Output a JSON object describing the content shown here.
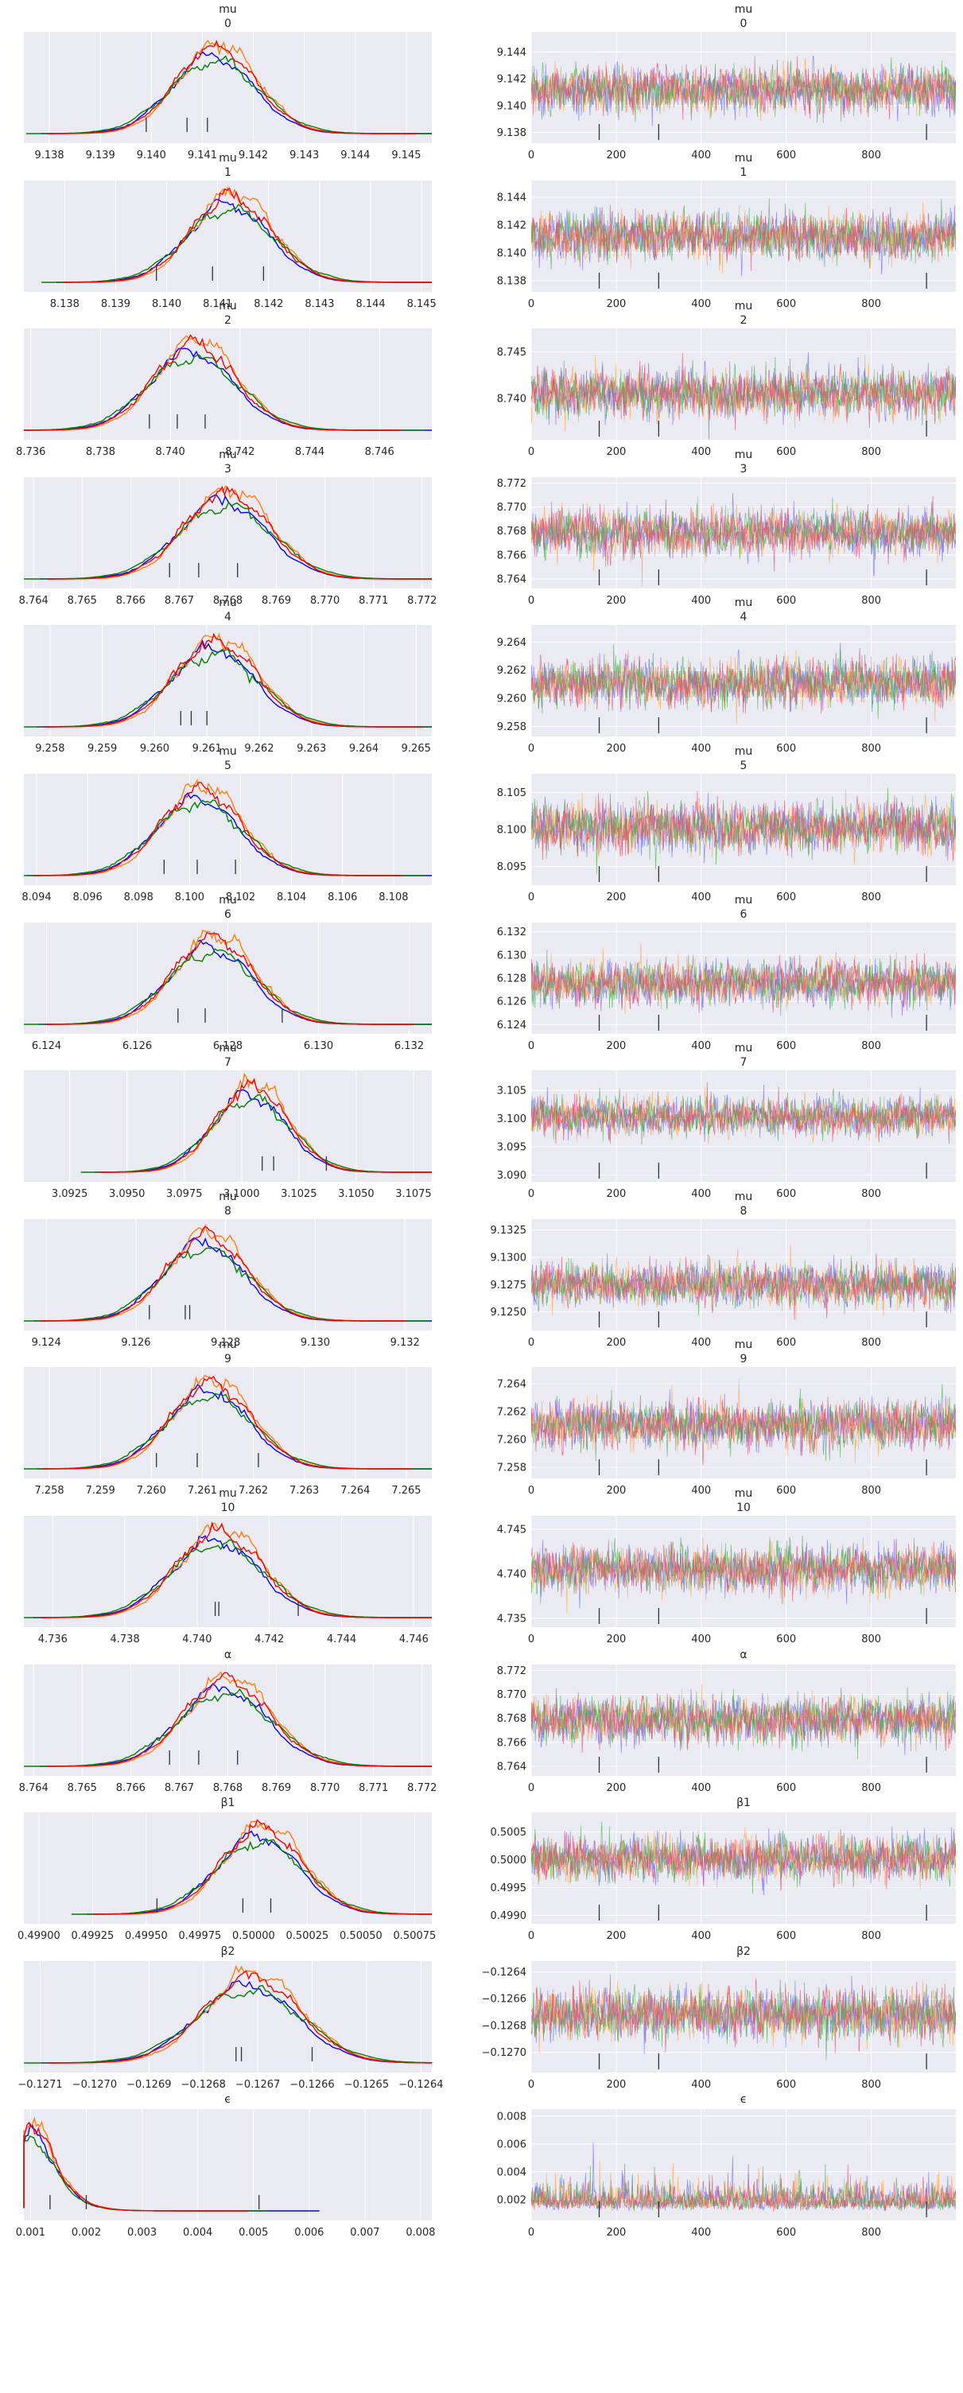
{
  "figure": {
    "type": "arviz_trace_plot",
    "chains": 4,
    "draws": 1000
  },
  "colors": {
    "background": "#eaeaf2",
    "grid": "#ffffff",
    "chain_colors": [
      "#0000ff",
      "#ff7f0e",
      "#008000",
      "#ff0000"
    ],
    "trace_colors": [
      "#6c6cff",
      "#ffa64d",
      "#4caf50",
      "#e0506e"
    ]
  },
  "chart_data": [
    {
      "type": "line",
      "panel": "density",
      "title": "mu",
      "subtitle": "0",
      "xlim": [
        9.1375,
        9.1455
      ],
      "xticks": [
        "9.138",
        "9.139",
        "9.140",
        "9.141",
        "9.142",
        "9.143",
        "9.144",
        "9.145"
      ],
      "xticks_num": [
        9.138,
        9.139,
        9.14,
        9.141,
        9.142,
        9.143,
        9.144,
        9.145
      ],
      "mean": 9.1412,
      "sd": 0.0008,
      "rug": [
        9.1399,
        9.1407,
        9.1411
      ],
      "grid": true
    },
    {
      "type": "line",
      "panel": "trace",
      "title": "mu",
      "subtitle": "0",
      "xlim": [
        0,
        999
      ],
      "ylim": [
        9.1372,
        9.1455
      ],
      "xticks": [
        "0",
        "200",
        "400",
        "600",
        "800"
      ],
      "yticks": [
        "9.138",
        "9.140",
        "9.142",
        "9.144"
      ],
      "yticks_num": [
        9.138,
        9.14,
        9.142,
        9.144
      ],
      "mean": 9.1412,
      "sd": 0.0008,
      "divergences": [
        160,
        300,
        930
      ],
      "grid": true
    },
    {
      "type": "line",
      "panel": "density",
      "title": "mu",
      "subtitle": "1",
      "xlim": [
        8.1372,
        8.1452
      ],
      "xticks": [
        "8.138",
        "8.139",
        "8.140",
        "8.141",
        "8.142",
        "8.143",
        "8.144",
        "8.145"
      ],
      "xticks_num": [
        8.138,
        8.139,
        8.14,
        8.141,
        8.142,
        8.143,
        8.144,
        8.145
      ],
      "mean": 8.1412,
      "sd": 0.0008,
      "rug": [
        8.1398,
        8.1409,
        8.1419
      ],
      "grid": true
    },
    {
      "type": "line",
      "panel": "trace",
      "title": "mu",
      "subtitle": "1",
      "xlim": [
        0,
        999
      ],
      "ylim": [
        8.1372,
        8.1452
      ],
      "xticks": [
        "0",
        "200",
        "400",
        "600",
        "800"
      ],
      "yticks": [
        "8.138",
        "8.140",
        "8.142",
        "8.144"
      ],
      "yticks_num": [
        8.138,
        8.14,
        8.142,
        8.144
      ],
      "mean": 8.1412,
      "sd": 0.0008,
      "divergences": [
        160,
        300,
        930
      ],
      "grid": true
    },
    {
      "type": "line",
      "panel": "density",
      "title": "mu",
      "subtitle": "2",
      "xlim": [
        8.7358,
        8.7475
      ],
      "xticks": [
        "8.736",
        "8.738",
        "8.740",
        "8.742",
        "8.744",
        "8.746"
      ],
      "xticks_num": [
        8.736,
        8.738,
        8.74,
        8.742,
        8.744,
        8.746
      ],
      "mean": 8.7406,
      "sd": 0.0012,
      "rug": [
        8.7394,
        8.7402,
        8.741
      ],
      "grid": true
    },
    {
      "type": "line",
      "panel": "trace",
      "title": "mu",
      "subtitle": "2",
      "xlim": [
        0,
        999
      ],
      "ylim": [
        8.7356,
        8.7475
      ],
      "xticks": [
        "0",
        "200",
        "400",
        "600",
        "800"
      ],
      "yticks": [
        "8.740",
        "8.745"
      ],
      "yticks_num": [
        8.74,
        8.745
      ],
      "mean": 8.7406,
      "sd": 0.0012,
      "divergences": [
        160,
        300,
        930
      ],
      "grid": true
    },
    {
      "type": "line",
      "panel": "density",
      "title": "mu",
      "subtitle": "3",
      "xlim": [
        8.7638,
        8.7722
      ],
      "xticks": [
        "8.764",
        "8.765",
        "8.766",
        "8.767",
        "8.768",
        "8.769",
        "8.770",
        "8.771",
        "8.772"
      ],
      "xticks_num": [
        8.764,
        8.765,
        8.766,
        8.767,
        8.768,
        8.769,
        8.77,
        8.771,
        8.772
      ],
      "mean": 8.7679,
      "sd": 0.0009,
      "rug": [
        8.7668,
        8.7674,
        8.7682
      ],
      "grid": true
    },
    {
      "type": "line",
      "panel": "trace",
      "title": "mu",
      "subtitle": "3",
      "xlim": [
        0,
        999
      ],
      "ylim": [
        8.7632,
        8.7725
      ],
      "xticks": [
        "0",
        "200",
        "400",
        "600",
        "800"
      ],
      "yticks": [
        "8.764",
        "8.766",
        "8.768",
        "8.770",
        "8.772"
      ],
      "yticks_num": [
        8.764,
        8.766,
        8.768,
        8.77,
        8.772
      ],
      "mean": 8.7679,
      "sd": 0.0009,
      "divergences": [
        160,
        300,
        930
      ],
      "grid": true
    },
    {
      "type": "line",
      "panel": "density",
      "title": "mu",
      "subtitle": "4",
      "xlim": [
        9.2575,
        9.2653
      ],
      "xticks": [
        "9.258",
        "9.259",
        "9.260",
        "9.261",
        "9.262",
        "9.263",
        "9.264",
        "9.265"
      ],
      "xticks_num": [
        9.258,
        9.259,
        9.26,
        9.261,
        9.262,
        9.263,
        9.264,
        9.265
      ],
      "mean": 9.2611,
      "sd": 0.0008,
      "rug": [
        9.2605,
        9.2607,
        9.261
      ],
      "grid": true
    },
    {
      "type": "line",
      "panel": "trace",
      "title": "mu",
      "subtitle": "4",
      "xlim": [
        0,
        999
      ],
      "ylim": [
        9.2573,
        9.2652
      ],
      "xticks": [
        "0",
        "200",
        "400",
        "600",
        "800"
      ],
      "yticks": [
        "9.258",
        "9.260",
        "9.262",
        "9.264"
      ],
      "yticks_num": [
        9.258,
        9.26,
        9.262,
        9.264
      ],
      "mean": 9.2611,
      "sd": 0.0008,
      "divergences": [
        160,
        300,
        930
      ],
      "grid": true
    },
    {
      "type": "line",
      "panel": "density",
      "title": "mu",
      "subtitle": "5",
      "xlim": [
        8.0935,
        8.1095
      ],
      "xticks": [
        "8.094",
        "8.096",
        "8.098",
        "8.100",
        "8.102",
        "8.104",
        "8.106",
        "8.108"
      ],
      "xticks_num": [
        8.094,
        8.096,
        8.098,
        8.1,
        8.102,
        8.104,
        8.106,
        8.108
      ],
      "mean": 8.1003,
      "sd": 0.0016,
      "rug": [
        8.099,
        8.1003,
        8.1018
      ],
      "grid": true
    },
    {
      "type": "line",
      "panel": "trace",
      "title": "mu",
      "subtitle": "5",
      "xlim": [
        0,
        999
      ],
      "ylim": [
        8.0925,
        8.1075
      ],
      "xticks": [
        "0",
        "200",
        "400",
        "600",
        "800"
      ],
      "yticks": [
        "8.095",
        "8.100",
        "8.105"
      ],
      "yticks_num": [
        8.095,
        8.1,
        8.105
      ],
      "mean": 8.1003,
      "sd": 0.0016,
      "divergences": [
        160,
        300,
        930
      ],
      "grid": true
    },
    {
      "type": "line",
      "panel": "density",
      "title": "mu",
      "subtitle": "6",
      "xlim": [
        6.1235,
        6.1325
      ],
      "xticks": [
        "6.124",
        "6.126",
        "6.128",
        "6.130",
        "6.132"
      ],
      "xticks_num": [
        6.124,
        6.126,
        6.128,
        6.13,
        6.132
      ],
      "mean": 6.1276,
      "sd": 0.0009,
      "rug": [
        6.1269,
        6.1275,
        6.1292
      ],
      "grid": true
    },
    {
      "type": "line",
      "panel": "trace",
      "title": "mu",
      "subtitle": "6",
      "xlim": [
        0,
        999
      ],
      "ylim": [
        6.1232,
        6.1328
      ],
      "xticks": [
        "0",
        "200",
        "400",
        "600",
        "800"
      ],
      "yticks": [
        "6.124",
        "6.126",
        "6.128",
        "6.130",
        "6.132"
      ],
      "yticks_num": [
        6.124,
        6.126,
        6.128,
        6.13,
        6.132
      ],
      "mean": 6.1276,
      "sd": 0.0009,
      "divergences": [
        160,
        300,
        930
      ],
      "grid": true
    },
    {
      "type": "line",
      "panel": "density",
      "title": "mu",
      "subtitle": "7",
      "xlim": [
        3.0905,
        3.1083
      ],
      "xticks": [
        "3.0925",
        "3.0950",
        "3.0975",
        "3.1000",
        "3.1025",
        "3.1050",
        "3.1075"
      ],
      "xticks_num": [
        3.0925,
        3.095,
        3.0975,
        3.1,
        3.1025,
        3.105,
        3.1075
      ],
      "mean": 3.1003,
      "sd": 0.0016,
      "rug": [
        3.1009,
        3.1014,
        3.1037
      ],
      "grid": true
    },
    {
      "type": "line",
      "panel": "trace",
      "title": "mu",
      "subtitle": "7",
      "xlim": [
        0,
        999
      ],
      "ylim": [
        3.0888,
        3.1085
      ],
      "xticks": [
        "0",
        "200",
        "400",
        "600",
        "800"
      ],
      "yticks": [
        "3.090",
        "3.095",
        "3.100",
        "3.105"
      ],
      "yticks_num": [
        3.09,
        3.095,
        3.1,
        3.105
      ],
      "mean": 3.1003,
      "sd": 0.0016,
      "divergences": [
        160,
        300,
        930
      ],
      "grid": true
    },
    {
      "type": "line",
      "panel": "density",
      "title": "mu",
      "subtitle": "8",
      "xlim": [
        9.1235,
        9.1326
      ],
      "xticks": [
        "9.124",
        "9.126",
        "9.128",
        "9.130",
        "9.132"
      ],
      "xticks_num": [
        9.124,
        9.126,
        9.128,
        9.13,
        9.132
      ],
      "mean": 9.1275,
      "sd": 0.0009,
      "rug": [
        9.1263,
        9.1271,
        9.1272
      ],
      "grid": true
    },
    {
      "type": "line",
      "panel": "trace",
      "title": "mu",
      "subtitle": "8",
      "xlim": [
        0,
        999
      ],
      "ylim": [
        9.1233,
        9.1335
      ],
      "xticks": [
        "0",
        "200",
        "400",
        "600",
        "800"
      ],
      "yticks": [
        "9.1250",
        "9.1275",
        "9.1300",
        "9.1325"
      ],
      "yticks_num": [
        9.125,
        9.1275,
        9.13,
        9.1325
      ],
      "mean": 9.1275,
      "sd": 0.0009,
      "divergences": [
        160,
        300,
        930
      ],
      "grid": true
    },
    {
      "type": "line",
      "panel": "density",
      "title": "mu",
      "subtitle": "9",
      "xlim": [
        7.2575,
        7.2655
      ],
      "xticks": [
        "7.258",
        "7.259",
        "7.260",
        "7.261",
        "7.262",
        "7.263",
        "7.264",
        "7.265"
      ],
      "xticks_num": [
        7.258,
        7.259,
        7.26,
        7.261,
        7.262,
        7.263,
        7.264,
        7.265
      ],
      "mean": 7.2611,
      "sd": 0.0008,
      "rug": [
        7.2601,
        7.2609,
        7.2621
      ],
      "grid": true
    },
    {
      "type": "line",
      "panel": "trace",
      "title": "mu",
      "subtitle": "9",
      "xlim": [
        0,
        999
      ],
      "ylim": [
        7.2572,
        7.2652
      ],
      "xticks": [
        "0",
        "200",
        "400",
        "600",
        "800"
      ],
      "yticks": [
        "7.258",
        "7.260",
        "7.262",
        "7.264"
      ],
      "yticks_num": [
        7.258,
        7.26,
        7.262,
        7.264
      ],
      "mean": 7.2611,
      "sd": 0.0008,
      "divergences": [
        160,
        300,
        930
      ],
      "grid": true
    },
    {
      "type": "line",
      "panel": "density",
      "title": "mu",
      "subtitle": "10",
      "xlim": [
        4.7352,
        4.7465
      ],
      "xticks": [
        "4.736",
        "4.738",
        "4.740",
        "4.742",
        "4.744",
        "4.746"
      ],
      "xticks_num": [
        4.736,
        4.738,
        4.74,
        4.742,
        4.744,
        4.746
      ],
      "mean": 4.7405,
      "sd": 0.0012,
      "rug": [
        4.7405,
        4.7406,
        4.7428
      ],
      "grid": true
    },
    {
      "type": "line",
      "panel": "trace",
      "title": "mu",
      "subtitle": "10",
      "xlim": [
        0,
        999
      ],
      "ylim": [
        4.734,
        4.7465
      ],
      "xticks": [
        "0",
        "200",
        "400",
        "600",
        "800"
      ],
      "yticks": [
        "4.735",
        "4.740",
        "4.745"
      ],
      "yticks_num": [
        4.735,
        4.74,
        4.745
      ],
      "mean": 4.7405,
      "sd": 0.0012,
      "divergences": [
        160,
        300,
        930
      ],
      "grid": true
    },
    {
      "type": "line",
      "panel": "density",
      "title": "α",
      "subtitle": "",
      "xlim": [
        8.7638,
        8.7722
      ],
      "xticks": [
        "8.764",
        "8.765",
        "8.766",
        "8.767",
        "8.768",
        "8.769",
        "8.770",
        "8.771",
        "8.772"
      ],
      "xticks_num": [
        8.764,
        8.765,
        8.766,
        8.767,
        8.768,
        8.769,
        8.77,
        8.771,
        8.772
      ],
      "mean": 8.7679,
      "sd": 0.0009,
      "rug": [
        8.7668,
        8.7674,
        8.7682
      ],
      "grid": true
    },
    {
      "type": "line",
      "panel": "trace",
      "title": "α",
      "subtitle": "",
      "xlim": [
        0,
        999
      ],
      "ylim": [
        8.7632,
        8.7725
      ],
      "xticks": [
        "0",
        "200",
        "400",
        "600",
        "800"
      ],
      "yticks": [
        "8.764",
        "8.766",
        "8.768",
        "8.770",
        "8.772"
      ],
      "yticks_num": [
        8.764,
        8.766,
        8.768,
        8.77,
        8.772
      ],
      "mean": 8.7679,
      "sd": 0.0009,
      "divergences": [
        160,
        300,
        930
      ],
      "grid": true
    },
    {
      "type": "line",
      "panel": "density",
      "title": "β1",
      "subtitle": "",
      "xlim": [
        0.49893,
        0.50083
      ],
      "xticks": [
        "0.49900",
        "0.49925",
        "0.49950",
        "0.49975",
        "0.50000",
        "0.50025",
        "0.50050",
        "0.50075"
      ],
      "xticks_num": [
        0.499,
        0.49925,
        0.4995,
        0.49975,
        0.5,
        0.50025,
        0.5005,
        0.50075
      ],
      "mean": 0.50002,
      "sd": 0.00019,
      "rug": [
        0.49955,
        0.49995,
        0.50008
      ],
      "grid": true
    },
    {
      "type": "line",
      "panel": "trace",
      "title": "β1",
      "subtitle": "",
      "xlim": [
        0,
        999
      ],
      "ylim": [
        0.49885,
        0.50085
      ],
      "xticks": [
        "0",
        "200",
        "400",
        "600",
        "800"
      ],
      "yticks": [
        "0.4990",
        "0.4995",
        "0.5000",
        "0.5005"
      ],
      "yticks_num": [
        0.499,
        0.4995,
        0.5,
        0.5005
      ],
      "mean": 0.50002,
      "sd": 0.00019,
      "divergences": [
        160,
        300,
        930
      ],
      "grid": true
    },
    {
      "type": "line",
      "panel": "density",
      "title": "β2",
      "subtitle": "",
      "xlim": [
        -0.12713,
        -0.12638
      ],
      "xticks": [
        "−0.1271",
        "−0.1270",
        "−0.1269",
        "−0.1268",
        "−0.1267",
        "−0.1266",
        "−0.1265",
        "−0.1264"
      ],
      "xticks_num": [
        -0.1271,
        -0.127,
        -0.1269,
        -0.1268,
        -0.1267,
        -0.1266,
        -0.1265,
        -0.1264
      ],
      "mean": -0.12672,
      "sd": 9e-05,
      "rug": [
        -0.12674,
        -0.12673,
        -0.1266
      ],
      "grid": true
    },
    {
      "type": "line",
      "panel": "trace",
      "title": "β2",
      "subtitle": "",
      "xlim": [
        0,
        999
      ],
      "ylim": [
        -0.12715,
        -0.12632
      ],
      "xticks": [
        "0",
        "200",
        "400",
        "600",
        "800"
      ],
      "yticks": [
        "−0.1264",
        "−0.1266",
        "−0.1268",
        "−0.1270"
      ],
      "yticks_num": [
        -0.1264,
        -0.1266,
        -0.1268,
        -0.127
      ],
      "mean": -0.12672,
      "sd": 9e-05,
      "divergences": [
        160,
        300,
        930
      ],
      "grid": true
    },
    {
      "type": "line",
      "panel": "density",
      "title": "ϵ",
      "subtitle": "",
      "xlim": [
        0.00088,
        0.0082
      ],
      "xticks": [
        "0.001",
        "0.002",
        "0.003",
        "0.004",
        "0.005",
        "0.006",
        "0.007",
        "0.008"
      ],
      "xticks_num": [
        0.001,
        0.002,
        0.003,
        0.004,
        0.005,
        0.006,
        0.007,
        0.008
      ],
      "mean": 0.0019,
      "sd": 0.0006,
      "skew": true,
      "rug": [
        0.00135,
        0.002,
        0.0051
      ],
      "grid": true
    },
    {
      "type": "line",
      "panel": "trace",
      "title": "ϵ",
      "subtitle": "",
      "xlim": [
        0,
        999
      ],
      "ylim": [
        0.0005,
        0.0085
      ],
      "xticks": [
        "0",
        "200",
        "400",
        "600",
        "800"
      ],
      "yticks": [
        "0.002",
        "0.004",
        "0.006",
        "0.008"
      ],
      "yticks_num": [
        0.002,
        0.004,
        0.006,
        0.008
      ],
      "mean": 0.0019,
      "sd": 0.0006,
      "skew": true,
      "divergences": [
        160,
        300,
        930
      ],
      "grid": true
    }
  ]
}
